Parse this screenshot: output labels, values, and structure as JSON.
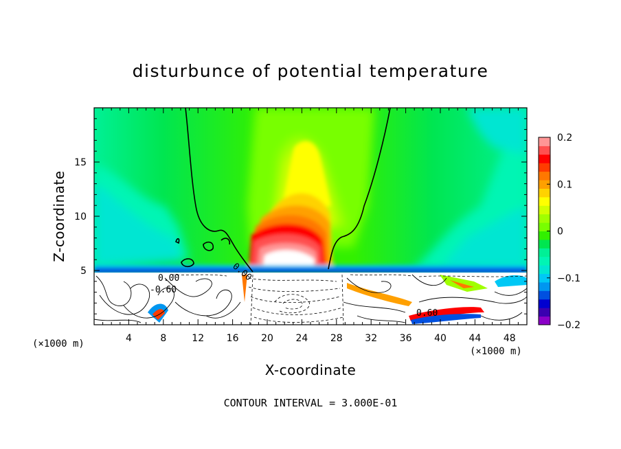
{
  "chart_data": {
    "type": "heatmap",
    "title": "disturbunce of potential temperature",
    "xlabel": "X-coordinate",
    "ylabel": "Z-coordinate",
    "x_unit": "(×1000 m)",
    "z_unit": "(×1000 m)",
    "xlim": [
      0,
      50
    ],
    "zlim": [
      0,
      20
    ],
    "x_ticks": [
      4,
      8,
      12,
      16,
      20,
      24,
      28,
      32,
      36,
      40,
      44,
      48
    ],
    "x_tick_labels": [
      "4",
      "8",
      "12",
      "16",
      "20",
      "24",
      "28",
      "32",
      "36",
      "40",
      "44",
      "48"
    ],
    "z_ticks": [
      5,
      10,
      15
    ],
    "z_tick_labels": [
      "5",
      "10",
      "15"
    ],
    "colorbar": {
      "range": [
        -0.2,
        0.2
      ],
      "tick_labels": [
        "0.2",
        "0.1",
        "0",
        "−0.1",
        "−0.2"
      ],
      "tick_values": [
        0.2,
        0.1,
        0,
        -0.1,
        -0.2
      ],
      "colors": [
        "#8b00c8",
        "#3a00b0",
        "#0000d0",
        "#0050e0",
        "#0096f0",
        "#00c8f5",
        "#00e6d2",
        "#00f5b4",
        "#00f096",
        "#00e650",
        "#32f000",
        "#78ff00",
        "#a0ff00",
        "#d2ff00",
        "#ffff00",
        "#ffd200",
        "#ffa000",
        "#ff7800",
        "#ff3c00",
        "#ff0000",
        "#ff5050",
        "#ff9696"
      ]
    },
    "contour_labels": [
      "0.00",
      "-0.60",
      "0.00",
      "0.60"
    ],
    "contour_interval_text": "CONTOUR INTERVAL = 3.000E-01"
  }
}
